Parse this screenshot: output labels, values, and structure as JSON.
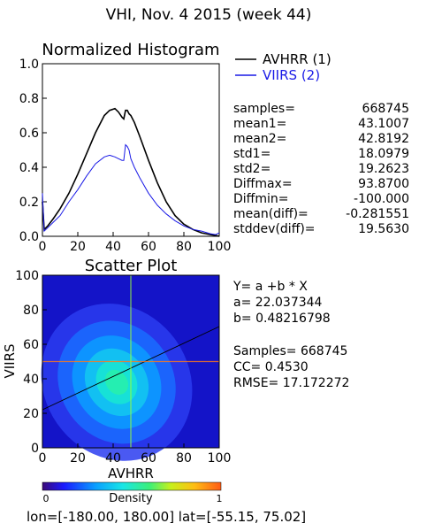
{
  "header": {
    "title": "VHI,  Nov. 4 2015 (week 44)"
  },
  "colors": {
    "avhrr": "#000000",
    "viirs": "#1a1ae6",
    "fit_line": "#000000",
    "cross": "#ff7a1a"
  },
  "chart_data": [
    {
      "type": "line",
      "title": "Normalized Histogram",
      "xlim": [
        0,
        100
      ],
      "ylim": [
        0.0,
        1.0
      ],
      "xticks": [
        "0",
        "20",
        "40",
        "60",
        "80",
        "100"
      ],
      "yticks": [
        "0.0",
        "0.2",
        "0.4",
        "0.6",
        "0.8",
        "1.0"
      ],
      "legend_position": "top-right",
      "x": [
        0,
        1,
        3,
        6,
        10,
        15,
        20,
        25,
        30,
        35,
        38,
        41,
        43,
        45,
        46,
        47,
        48,
        49,
        50,
        52,
        55,
        60,
        65,
        70,
        75,
        80,
        85,
        90,
        95,
        98,
        100
      ],
      "series": [
        {
          "name": "AVHRR (1)",
          "color": "#000000",
          "values": [
            0.2,
            0.04,
            0.06,
            0.1,
            0.16,
            0.25,
            0.36,
            0.48,
            0.6,
            0.7,
            0.73,
            0.74,
            0.72,
            0.69,
            0.68,
            0.73,
            0.73,
            0.71,
            0.7,
            0.66,
            0.58,
            0.44,
            0.31,
            0.2,
            0.12,
            0.07,
            0.04,
            0.02,
            0.01,
            0.005,
            0.0
          ]
        },
        {
          "name": "VIIRS (2)",
          "color": "#1a1ae6",
          "values": [
            0.25,
            0.03,
            0.05,
            0.08,
            0.12,
            0.2,
            0.27,
            0.35,
            0.42,
            0.46,
            0.47,
            0.46,
            0.45,
            0.44,
            0.44,
            0.53,
            0.52,
            0.5,
            0.45,
            0.4,
            0.34,
            0.25,
            0.18,
            0.13,
            0.09,
            0.06,
            0.04,
            0.03,
            0.015,
            0.01,
            0.02
          ]
        }
      ]
    },
    {
      "type": "scatter",
      "title": "Scatter Plot",
      "xlabel": "AVHRR",
      "ylabel": "VIIRS",
      "xlim": [
        0,
        100
      ],
      "ylim": [
        0,
        100
      ],
      "xticks": [
        "0",
        "20",
        "40",
        "60",
        "80",
        "100"
      ],
      "yticks": [
        "0",
        "20",
        "40",
        "60",
        "80",
        "100"
      ],
      "density_center": [
        42,
        38
      ],
      "fit": {
        "a": 22.037344,
        "b": 0.48216798
      },
      "colorbar": {
        "label": "Density",
        "min_label": "0",
        "max_label": "1"
      }
    }
  ],
  "stats": [
    {
      "label": "samples=",
      "value": "668745"
    },
    {
      "label": "mean1=",
      "value": "43.1007"
    },
    {
      "label": "mean2=",
      "value": "42.8192"
    },
    {
      "label": "std1=",
      "value": "18.0979"
    },
    {
      "label": "std2=",
      "value": "19.2623"
    },
    {
      "label": "Diffmax=",
      "value": "93.8700"
    },
    {
      "label": "Diffmin=",
      "value": "-100.000"
    },
    {
      "label": "mean(diff)=",
      "value": "-0.281551"
    },
    {
      "label": "stddev(diff)=",
      "value": "19.5630"
    }
  ],
  "regression": {
    "equation": "Y= a +b * X",
    "a_text": "a= 22.037344",
    "b_text": "b= 0.48216798",
    "samples_text": "Samples= 668745",
    "cc_text": "CC=  0.4530",
    "rmse_text": "RMSE= 17.172272"
  },
  "footer": {
    "range": "lon=[-180.00, 180.00] lat=[-55.15, 75.02]"
  }
}
